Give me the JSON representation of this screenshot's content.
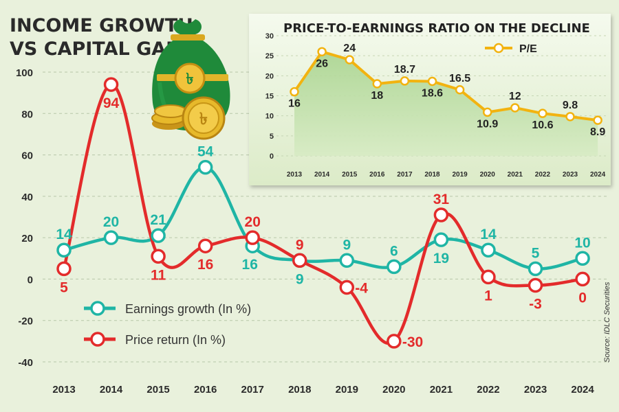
{
  "main_title_line1": "INCOME GROWTH",
  "main_title_line2": "VS CAPITAL GAIN",
  "source_note": "Source: IDLC Securities",
  "colors": {
    "background": "#e9f1dc",
    "earnings": "#1fb5a5",
    "price": "#e32b2b",
    "pe_line": "#f2b310",
    "inset_bg_top": "#f3f8ec",
    "inset_area": "#b9dba2",
    "bag_green": "#1f8a3a",
    "coin_gold": "#e7b92b"
  },
  "chart_data": [
    {
      "type": "line",
      "title": "INCOME GROWTH VS CAPITAL GAIN",
      "categories": [
        "2013",
        "2014",
        "2015",
        "2016",
        "2017",
        "2018",
        "2019",
        "2020",
        "2021",
        "2022",
        "2023",
        "2024"
      ],
      "series": [
        {
          "name": "Earnings growth (In %)",
          "values": [
            14,
            20,
            21,
            54,
            16,
            9,
            9,
            6,
            19,
            14,
            5,
            10
          ],
          "labels": [
            "14",
            "20",
            "21",
            "54",
            "16",
            "9",
            "9",
            "6",
            "19",
            "14",
            "5",
            "10"
          ]
        },
        {
          "name": "Price return (In %)",
          "values": [
            5,
            94,
            11,
            16,
            20,
            9,
            -4,
            -30,
            31,
            1,
            -3,
            0
          ],
          "labels": [
            "5",
            "94",
            "11",
            "16",
            "20",
            "9",
            "-4",
            "-30",
            "31",
            "1",
            "-3",
            "0"
          ]
        }
      ],
      "yticks": [
        "100",
        "80",
        "60",
        "40",
        "20",
        "0",
        "-20",
        "-40"
      ],
      "ylim": [
        -40,
        100
      ],
      "xlabel": "",
      "ylabel": "",
      "legend": [
        "Earnings growth (In %)",
        "Price return (In %)"
      ]
    },
    {
      "type": "area",
      "title": "PRICE-TO-EARNINGS RATIO ON THE DECLINE",
      "categories": [
        "2013",
        "2014",
        "2015",
        "2016",
        "2017",
        "2018",
        "2019",
        "2020",
        "2021",
        "2022",
        "2023",
        "2024"
      ],
      "series": [
        {
          "name": "P/E",
          "values": [
            16,
            26,
            24,
            18,
            18.7,
            18.6,
            16.5,
            10.9,
            12,
            10.6,
            9.8,
            8.9
          ],
          "labels": [
            "16",
            "26",
            "24",
            "18",
            "18.7",
            "18.6",
            "16.5",
            "10.9",
            "12",
            "10.6",
            "9.8",
            "8.9"
          ]
        }
      ],
      "yticks": [
        "30",
        "25",
        "20",
        "15",
        "10",
        "5",
        "0"
      ],
      "ylim": [
        0,
        30
      ],
      "legend": [
        "P/E"
      ]
    }
  ]
}
